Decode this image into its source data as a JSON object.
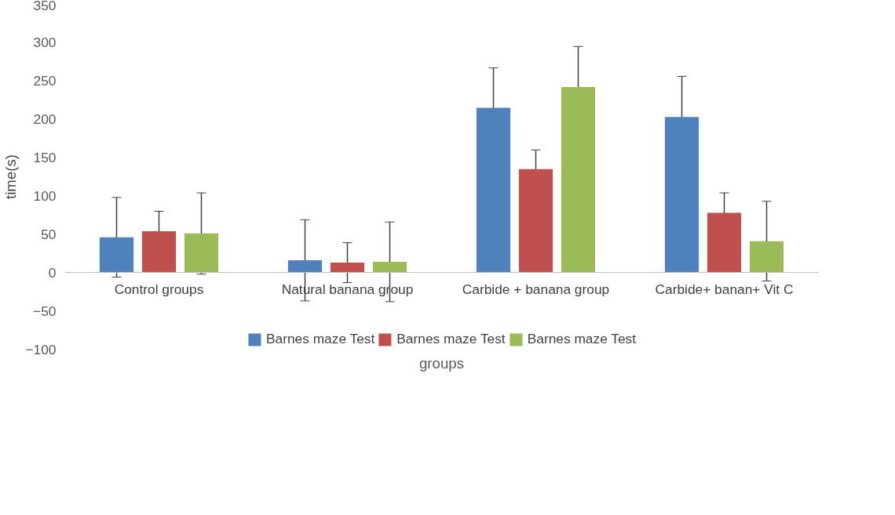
{
  "chart_data": {
    "type": "bar",
    "xlabel": "groups",
    "ylabel": "time(s)",
    "categories": [
      "Control groups",
      "Natural banana group",
      "Carbide + banana group",
      "Carbide+ banan+ Vit C"
    ],
    "series": [
      {
        "name": "Barnes maze Test",
        "color": "#4f81bd",
        "values": [
          46,
          16,
          215,
          203
        ],
        "errors": [
          52,
          53,
          52,
          53
        ]
      },
      {
        "name": "Barnes maze Test",
        "color": "#c0504d",
        "values": [
          54,
          13,
          135,
          78
        ],
        "errors": [
          26,
          26,
          25,
          26
        ]
      },
      {
        "name": "Barnes maze Test",
        "color": "#9bbb59",
        "values": [
          51,
          14,
          242,
          41
        ],
        "errors": [
          53,
          52,
          53,
          52
        ]
      }
    ],
    "ylim": [
      -100,
      350
    ],
    "yticks": [
      -100,
      -50,
      0,
      50,
      100,
      150,
      200,
      250,
      300,
      350
    ],
    "grid": false,
    "legend": "bottom"
  }
}
